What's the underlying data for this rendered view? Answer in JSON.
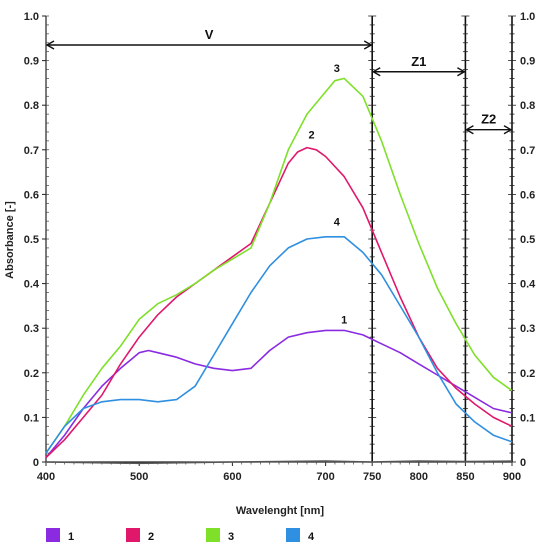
{
  "chart_data": {
    "type": "line",
    "xlabel": "Wavelenght [nm]",
    "ylabel": "Absorbance [-]",
    "xlim": [
      400,
      900
    ],
    "ylim": [
      0,
      1.0
    ],
    "x_ticks": [
      400,
      500,
      600,
      700,
      750,
      800,
      850,
      900
    ],
    "y_ticks": [
      0,
      0.1,
      0.2,
      0.3,
      0.4,
      0.5,
      0.6,
      0.7,
      0.8,
      0.9,
      1.0
    ],
    "y_tick_labels": [
      "0",
      "0.1",
      "0.2",
      "0.3",
      "0.4",
      "0.5",
      "0.6",
      "0.7",
      "0.8",
      "0.9",
      "1.0"
    ],
    "grid": false,
    "legend_position": "bottom",
    "regions": [
      {
        "label": "V",
        "from": 400,
        "to": 750
      },
      {
        "label": "Z1",
        "from": 750,
        "to": 850
      },
      {
        "label": "Z2",
        "from": 850,
        "to": 900
      }
    ],
    "vertical_lines": [
      750,
      850,
      900
    ],
    "series": [
      {
        "name": "1",
        "color": "#8a2be2",
        "label_at": [
          720,
          0.31
        ],
        "x": [
          400,
          420,
          440,
          460,
          480,
          500,
          510,
          520,
          540,
          560,
          580,
          600,
          620,
          640,
          660,
          680,
          700,
          720,
          740,
          760,
          780,
          800,
          820,
          840,
          860,
          880,
          900
        ],
        "y": [
          0.01,
          0.06,
          0.12,
          0.17,
          0.21,
          0.245,
          0.25,
          0.245,
          0.235,
          0.22,
          0.21,
          0.205,
          0.21,
          0.25,
          0.28,
          0.29,
          0.295,
          0.295,
          0.285,
          0.265,
          0.245,
          0.22,
          0.195,
          0.17,
          0.145,
          0.12,
          0.11
        ]
      },
      {
        "name": "2",
        "color": "#e0186c",
        "label_at": [
          685,
          0.725
        ],
        "x": [
          400,
          420,
          440,
          460,
          480,
          500,
          520,
          540,
          560,
          580,
          600,
          620,
          640,
          660,
          670,
          680,
          690,
          700,
          720,
          740,
          760,
          780,
          800,
          820,
          840,
          860,
          880,
          900
        ],
        "y": [
          0.01,
          0.05,
          0.1,
          0.15,
          0.22,
          0.28,
          0.33,
          0.37,
          0.4,
          0.43,
          0.46,
          0.49,
          0.58,
          0.67,
          0.695,
          0.705,
          0.7,
          0.685,
          0.64,
          0.57,
          0.47,
          0.37,
          0.28,
          0.21,
          0.165,
          0.13,
          0.1,
          0.08
        ]
      },
      {
        "name": "3",
        "color": "#7fe02a",
        "label_at": [
          712,
          0.875
        ],
        "x": [
          400,
          420,
          440,
          460,
          480,
          500,
          520,
          540,
          560,
          580,
          600,
          620,
          640,
          660,
          680,
          700,
          710,
          720,
          740,
          760,
          780,
          800,
          820,
          840,
          860,
          880,
          900
        ],
        "y": [
          0.02,
          0.08,
          0.15,
          0.21,
          0.26,
          0.32,
          0.355,
          0.375,
          0.4,
          0.43,
          0.455,
          0.48,
          0.58,
          0.7,
          0.78,
          0.83,
          0.855,
          0.86,
          0.82,
          0.72,
          0.6,
          0.49,
          0.39,
          0.31,
          0.24,
          0.19,
          0.16
        ]
      },
      {
        "name": "4",
        "color": "#2f8fe0",
        "label_at": [
          712,
          0.53
        ],
        "x": [
          400,
          420,
          440,
          460,
          480,
          500,
          520,
          540,
          560,
          580,
          600,
          620,
          640,
          660,
          680,
          700,
          720,
          740,
          760,
          780,
          800,
          820,
          840,
          860,
          880,
          900
        ],
        "y": [
          0.02,
          0.08,
          0.12,
          0.135,
          0.14,
          0.14,
          0.135,
          0.14,
          0.17,
          0.24,
          0.31,
          0.38,
          0.44,
          0.48,
          0.5,
          0.505,
          0.505,
          0.47,
          0.42,
          0.35,
          0.28,
          0.2,
          0.13,
          0.09,
          0.06,
          0.045
        ]
      },
      {
        "name": "baseline",
        "color": "#555555",
        "x": [
          400,
          500,
          600,
          700,
          750,
          800,
          850,
          900
        ],
        "y": [
          0.0,
          -0.003,
          0.0,
          0.002,
          0.0,
          0.002,
          0.001,
          0.002
        ]
      }
    ],
    "legend": [
      {
        "label": "1",
        "color": "#8a2be2"
      },
      {
        "label": "2",
        "color": "#e0186c"
      },
      {
        "label": "3",
        "color": "#7fe02a"
      },
      {
        "label": "4",
        "color": "#2f8fe0"
      }
    ]
  }
}
